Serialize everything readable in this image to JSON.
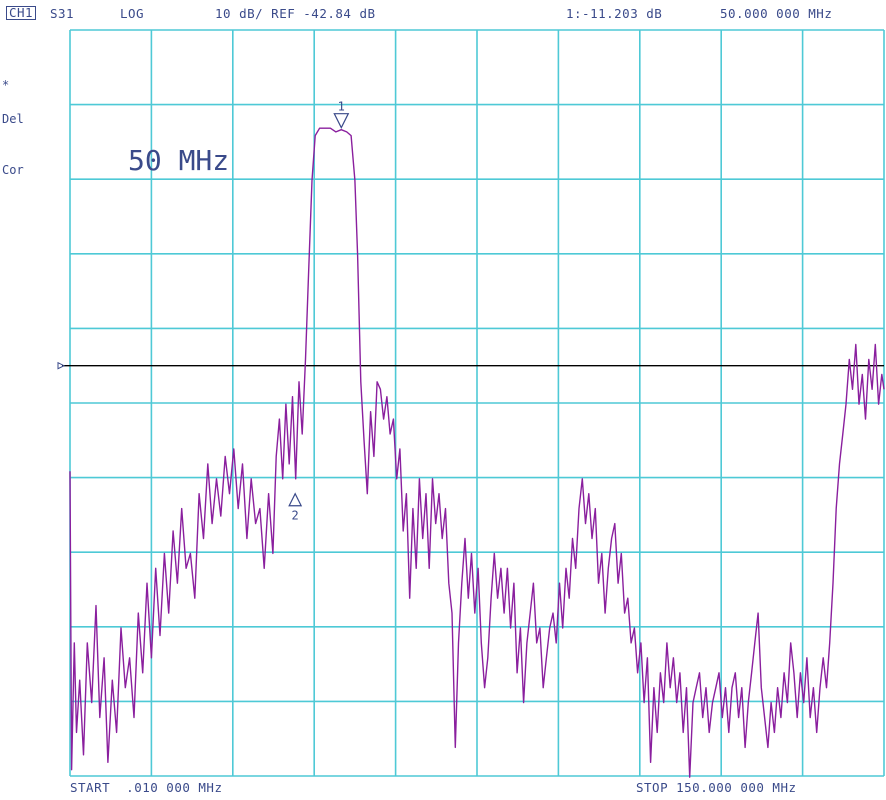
{
  "header": {
    "channel": "CH1",
    "parameter": "S31",
    "format": "LOG",
    "scale": "10 dB/ REF -42.84 dB",
    "marker_readout": "1:-11.203 dB",
    "marker_freq": "50.000 000 MHz"
  },
  "side_annotations": [
    "*",
    "Del",
    "Cor"
  ],
  "footer": {
    "start": "START  .010 000 MHz",
    "stop": "STOP 150.000 000 MHz"
  },
  "colors": {
    "grid": "#4ec9d6",
    "trace": "#8a1f9e",
    "reference_line": "#000000",
    "text": "#3a4a8a"
  },
  "chart_data": {
    "type": "line",
    "title": "",
    "annotation": "50 MHz",
    "xlabel": "",
    "ylabel": "",
    "x_start_mhz": 0.01,
    "x_stop_mhz": 150.0,
    "y_scale_db_per_div": 10,
    "reference_db": -42.84,
    "xlim": [
      0.01,
      150.0
    ],
    "ylim": [
      -97.84,
      2.16
    ],
    "grid": true,
    "markers": [
      {
        "label": "1",
        "x_mhz": 50.0,
        "y_db": -11.2,
        "style": "triangle-down-above"
      },
      {
        "label": "2",
        "x_mhz": 41.5,
        "y_db": -60.0,
        "style": "triangle-up-above"
      }
    ],
    "series": [
      {
        "points_mhz_db": [
          [
            0.01,
            -57
          ],
          [
            0.3,
            -97
          ],
          [
            0.8,
            -80
          ],
          [
            1.2,
            -92
          ],
          [
            1.8,
            -85
          ],
          [
            2.5,
            -95
          ],
          [
            3.2,
            -80
          ],
          [
            4.0,
            -88
          ],
          [
            4.8,
            -75
          ],
          [
            5.5,
            -90
          ],
          [
            6.3,
            -82
          ],
          [
            7.0,
            -96
          ],
          [
            7.8,
            -85
          ],
          [
            8.6,
            -92
          ],
          [
            9.4,
            -78
          ],
          [
            10.2,
            -86
          ],
          [
            11.0,
            -82
          ],
          [
            11.8,
            -90
          ],
          [
            12.6,
            -76
          ],
          [
            13.4,
            -84
          ],
          [
            14.2,
            -72
          ],
          [
            15.0,
            -82
          ],
          [
            15.8,
            -70
          ],
          [
            16.6,
            -79
          ],
          [
            17.4,
            -68
          ],
          [
            18.2,
            -76
          ],
          [
            19.0,
            -65
          ],
          [
            19.8,
            -72
          ],
          [
            20.6,
            -62
          ],
          [
            21.4,
            -70
          ],
          [
            22.2,
            -68
          ],
          [
            23.0,
            -74
          ],
          [
            23.8,
            -60
          ],
          [
            24.6,
            -66
          ],
          [
            25.4,
            -56
          ],
          [
            26.2,
            -64
          ],
          [
            27.0,
            -58
          ],
          [
            27.8,
            -63
          ],
          [
            28.6,
            -55
          ],
          [
            29.4,
            -60
          ],
          [
            30.2,
            -54
          ],
          [
            31.0,
            -62
          ],
          [
            31.8,
            -56
          ],
          [
            32.6,
            -66
          ],
          [
            33.4,
            -58
          ],
          [
            34.2,
            -64
          ],
          [
            35.0,
            -62
          ],
          [
            35.8,
            -70
          ],
          [
            36.6,
            -60
          ],
          [
            37.4,
            -68
          ],
          [
            38.0,
            -55
          ],
          [
            38.6,
            -50
          ],
          [
            39.2,
            -58
          ],
          [
            39.8,
            -48
          ],
          [
            40.4,
            -56
          ],
          [
            41.0,
            -47
          ],
          [
            41.6,
            -58
          ],
          [
            42.2,
            -45
          ],
          [
            42.8,
            -52
          ],
          [
            43.4,
            -42
          ],
          [
            44.0,
            -30
          ],
          [
            44.6,
            -18
          ],
          [
            45.2,
            -12
          ],
          [
            46.0,
            -11
          ],
          [
            47.0,
            -11
          ],
          [
            48.0,
            -11
          ],
          [
            49.0,
            -11.5
          ],
          [
            50.0,
            -11.2
          ],
          [
            51.0,
            -11.5
          ],
          [
            51.8,
            -12
          ],
          [
            52.5,
            -18
          ],
          [
            53.0,
            -28
          ],
          [
            53.6,
            -45
          ],
          [
            54.2,
            -53
          ],
          [
            54.8,
            -60
          ],
          [
            55.4,
            -49
          ],
          [
            56.0,
            -55
          ],
          [
            56.6,
            -45
          ],
          [
            57.2,
            -46
          ],
          [
            57.8,
            -50
          ],
          [
            58.4,
            -47
          ],
          [
            59.0,
            -52
          ],
          [
            59.6,
            -50
          ],
          [
            60.2,
            -58
          ],
          [
            60.8,
            -54
          ],
          [
            61.4,
            -65
          ],
          [
            62.0,
            -60
          ],
          [
            62.6,
            -74
          ],
          [
            63.2,
            -62
          ],
          [
            63.8,
            -70
          ],
          [
            64.4,
            -58
          ],
          [
            65.0,
            -66
          ],
          [
            65.6,
            -60
          ],
          [
            66.2,
            -70
          ],
          [
            66.8,
            -58
          ],
          [
            67.4,
            -64
          ],
          [
            68.0,
            -60
          ],
          [
            68.6,
            -66
          ],
          [
            69.2,
            -62
          ],
          [
            69.8,
            -72
          ],
          [
            70.4,
            -76
          ],
          [
            71.0,
            -94
          ],
          [
            71.6,
            -80
          ],
          [
            72.2,
            -72
          ],
          [
            72.8,
            -66
          ],
          [
            73.4,
            -74
          ],
          [
            74.0,
            -68
          ],
          [
            74.6,
            -76
          ],
          [
            75.2,
            -70
          ],
          [
            75.8,
            -80
          ],
          [
            76.4,
            -86
          ],
          [
            77.0,
            -82
          ],
          [
            77.6,
            -74
          ],
          [
            78.2,
            -68
          ],
          [
            78.8,
            -74
          ],
          [
            79.4,
            -70
          ],
          [
            80.0,
            -76
          ],
          [
            80.6,
            -70
          ],
          [
            81.2,
            -78
          ],
          [
            81.8,
            -72
          ],
          [
            82.4,
            -84
          ],
          [
            83.0,
            -78
          ],
          [
            83.6,
            -88
          ],
          [
            84.2,
            -80
          ],
          [
            84.8,
            -76
          ],
          [
            85.4,
            -72
          ],
          [
            86.0,
            -80
          ],
          [
            86.6,
            -78
          ],
          [
            87.2,
            -86
          ],
          [
            87.8,
            -82
          ],
          [
            88.4,
            -78
          ],
          [
            89.0,
            -76
          ],
          [
            89.6,
            -80
          ],
          [
            90.2,
            -72
          ],
          [
            90.8,
            -78
          ],
          [
            91.4,
            -70
          ],
          [
            92.0,
            -74
          ],
          [
            92.6,
            -66
          ],
          [
            93.2,
            -70
          ],
          [
            93.8,
            -62
          ],
          [
            94.4,
            -58
          ],
          [
            95.0,
            -64
          ],
          [
            95.6,
            -60
          ],
          [
            96.2,
            -66
          ],
          [
            96.8,
            -62
          ],
          [
            97.4,
            -72
          ],
          [
            98.0,
            -68
          ],
          [
            98.6,
            -76
          ],
          [
            99.2,
            -70
          ],
          [
            99.8,
            -66
          ],
          [
            100.4,
            -64
          ],
          [
            101.0,
            -72
          ],
          [
            101.6,
            -68
          ],
          [
            102.2,
            -76
          ],
          [
            102.8,
            -74
          ],
          [
            103.4,
            -80
          ],
          [
            104.0,
            -78
          ],
          [
            104.6,
            -84
          ],
          [
            105.2,
            -80
          ],
          [
            105.8,
            -88
          ],
          [
            106.4,
            -82
          ],
          [
            107.0,
            -96
          ],
          [
            107.6,
            -86
          ],
          [
            108.2,
            -92
          ],
          [
            108.8,
            -84
          ],
          [
            109.4,
            -88
          ],
          [
            110.0,
            -80
          ],
          [
            110.6,
            -86
          ],
          [
            111.2,
            -82
          ],
          [
            111.8,
            -88
          ],
          [
            112.4,
            -84
          ],
          [
            113.0,
            -92
          ],
          [
            113.6,
            -86
          ],
          [
            114.2,
            -98
          ],
          [
            114.8,
            -88
          ],
          [
            115.4,
            -86
          ],
          [
            116.0,
            -84
          ],
          [
            116.6,
            -90
          ],
          [
            117.2,
            -86
          ],
          [
            117.8,
            -92
          ],
          [
            118.4,
            -88
          ],
          [
            119.0,
            -86
          ],
          [
            119.6,
            -84
          ],
          [
            120.2,
            -90
          ],
          [
            120.8,
            -86
          ],
          [
            121.4,
            -92
          ],
          [
            122.0,
            -86
          ],
          [
            122.6,
            -84
          ],
          [
            123.2,
            -90
          ],
          [
            123.8,
            -86
          ],
          [
            124.4,
            -94
          ],
          [
            125.0,
            -88
          ],
          [
            125.6,
            -84
          ],
          [
            126.2,
            -80
          ],
          [
            126.8,
            -76
          ],
          [
            127.4,
            -86
          ],
          [
            128.0,
            -90
          ],
          [
            128.6,
            -94
          ],
          [
            129.2,
            -88
          ],
          [
            129.8,
            -92
          ],
          [
            130.4,
            -86
          ],
          [
            131.0,
            -90
          ],
          [
            131.6,
            -84
          ],
          [
            132.2,
            -88
          ],
          [
            132.8,
            -80
          ],
          [
            133.4,
            -84
          ],
          [
            134.0,
            -90
          ],
          [
            134.6,
            -84
          ],
          [
            135.2,
            -88
          ],
          [
            135.8,
            -82
          ],
          [
            136.4,
            -90
          ],
          [
            137.0,
            -86
          ],
          [
            137.6,
            -92
          ],
          [
            138.2,
            -86
          ],
          [
            138.8,
            -82
          ],
          [
            139.4,
            -86
          ],
          [
            140.0,
            -80
          ],
          [
            140.6,
            -72
          ],
          [
            141.2,
            -62
          ],
          [
            141.8,
            -56
          ],
          [
            142.4,
            -52
          ],
          [
            143.0,
            -48
          ],
          [
            143.6,
            -42
          ],
          [
            144.2,
            -46
          ],
          [
            144.8,
            -40
          ],
          [
            145.4,
            -48
          ],
          [
            146.0,
            -44
          ],
          [
            146.6,
            -50
          ],
          [
            147.2,
            -42
          ],
          [
            147.8,
            -46
          ],
          [
            148.4,
            -40
          ],
          [
            149.0,
            -48
          ],
          [
            149.6,
            -44
          ],
          [
            150.0,
            -46
          ]
        ]
      }
    ]
  }
}
